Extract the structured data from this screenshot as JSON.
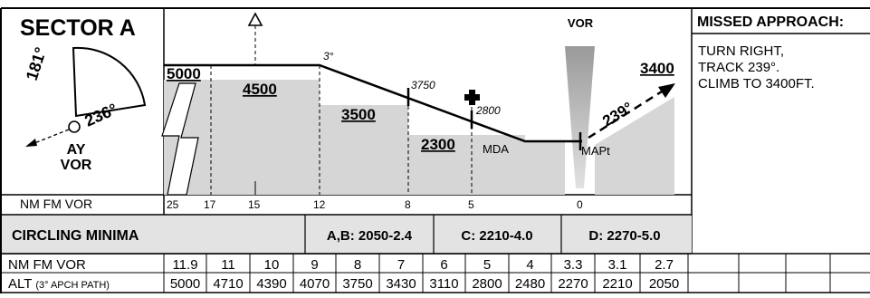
{
  "sector": {
    "title": "SECTOR A",
    "bearing_left": "181°",
    "bearing_right": "236°",
    "station_ident": "AY",
    "station_type": "VOR"
  },
  "profile": {
    "vor_label": "VOR",
    "glidepath_angle": "3°",
    "altitudes": {
      "a5000": "5000",
      "a4500": "4500",
      "a3500": "3500",
      "a2300": "2300",
      "a3400": "3400"
    },
    "fix_3750": "3750",
    "fix_2800": "2800",
    "mda_label": "MDA",
    "mapt_label": "MAPt",
    "missed_track_label": "239°",
    "distance_axis_label": "NM FM VOR",
    "distance_ticks": [
      "25",
      "17",
      "15",
      "12",
      "8",
      "5",
      "0"
    ]
  },
  "missed_approach": {
    "title": "MISSED APPROACH:",
    "lines": [
      "TURN RIGHT,",
      "TRACK 239°.",
      "CLIMB TO 3400FT."
    ]
  },
  "circling_minima": {
    "title": "CIRCLING MINIMA",
    "ab": "A,B: 2050-2.4",
    "c": "C: 2210-4.0",
    "d": "D: 2270-5.0"
  },
  "descent_table": {
    "row1_label": "NM FM VOR",
    "row2_label": "ALT",
    "row2_sublabel": "(3° APCH PATH)",
    "nm": [
      "11.9",
      "11",
      "10",
      "9",
      "8",
      "7",
      "6",
      "5",
      "4",
      "3.3",
      "3.1",
      "2.7",
      "",
      "",
      "",
      ""
    ],
    "alt": [
      "5000",
      "4710",
      "4390",
      "4070",
      "3750",
      "3430",
      "3110",
      "2800",
      "2480",
      "2270",
      "2210",
      "2050",
      "",
      "",
      "",
      ""
    ]
  }
}
